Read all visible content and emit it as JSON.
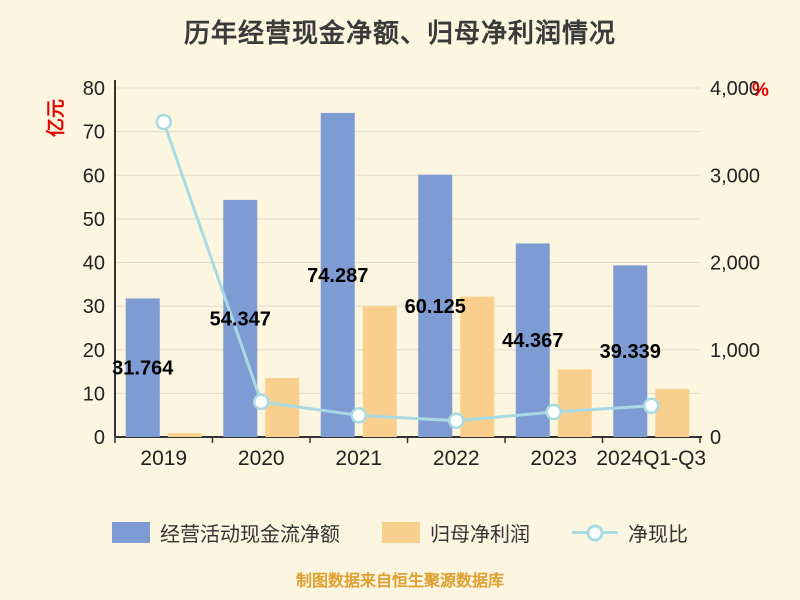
{
  "title": "历年经营现金净额、归母净利润情况",
  "source_note": "制图数据来自恒生聚源数据库",
  "colors": {
    "background": "#fcf5e0",
    "bar_cash": "#7f9bd3",
    "bar_profit": "#f8cf8d",
    "line_ratio": "#a9dae3",
    "axis_unit": "#e60000",
    "grid": "#e2dcc8",
    "axis": "#333333",
    "tick_text": "#222222",
    "source_text": "#dd9f2e"
  },
  "chart_data": {
    "type": "bar",
    "subtype": "grouped bars with overlay line",
    "title": "历年经营现金净额、归母净利润情况",
    "categories": [
      "2019",
      "2020",
      "2021",
      "2022",
      "2023",
      "2024Q1-Q3"
    ],
    "series": [
      {
        "name": "经营活动现金流净额",
        "type": "bar",
        "axis": "left",
        "color": "#7f9bd3",
        "values": [
          31.764,
          54.347,
          74.287,
          60.125,
          44.367,
          39.339
        ],
        "labels": [
          "31.764",
          "54.347",
          "74.287",
          "60.125",
          "44.367",
          "39.339"
        ]
      },
      {
        "name": "归母净利润",
        "type": "bar",
        "axis": "left",
        "color": "#f8cf8d",
        "values": [
          0.88,
          13.5,
          30.0,
          32.2,
          15.5,
          11.0
        ]
      },
      {
        "name": "净现比",
        "type": "line",
        "axis": "right",
        "color": "#a9dae3",
        "values": [
          3610,
          403,
          248,
          187,
          286,
          358
        ]
      }
    ],
    "left_axis": {
      "unit": "亿元",
      "min": 0,
      "max": 80,
      "ticks": [
        "0",
        "10",
        "20",
        "30",
        "40",
        "50",
        "60",
        "70",
        "80"
      ]
    },
    "right_axis": {
      "unit": "%",
      "min": 0,
      "max": 4000,
      "ticks": [
        "0",
        "1,000",
        "2,000",
        "3,000",
        "4,000"
      ]
    },
    "grid": true,
    "legend_position": "bottom",
    "legend": [
      "经营活动现金流净额",
      "归母净利润",
      "净现比"
    ]
  }
}
